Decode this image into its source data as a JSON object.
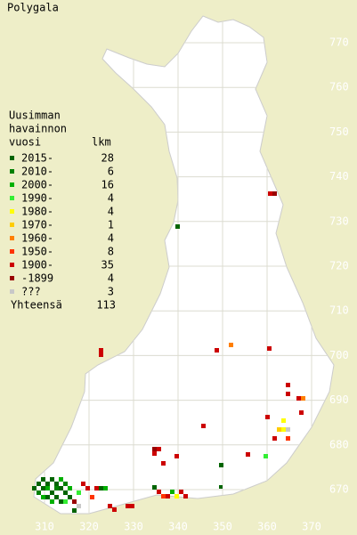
{
  "title": "Polygala",
  "legend": {
    "heading": [
      "Uusimman",
      "havainnon",
      "vuosi"
    ],
    "count_heading": "lkm",
    "rows": [
      {
        "label": "2015-",
        "count": 28,
        "color": "#006400"
      },
      {
        "label": "2010-",
        "count": 6,
        "color": "#008000"
      },
      {
        "label": "2000-",
        "count": 16,
        "color": "#00b000"
      },
      {
        "label": "1990-",
        "count": 4,
        "color": "#33ee33"
      },
      {
        "label": "1980-",
        "count": 4,
        "color": "#ffff00"
      },
      {
        "label": "1970-",
        "count": 1,
        "color": "#ffcc00"
      },
      {
        "label": "1960-",
        "count": 4,
        "color": "#ff7f00"
      },
      {
        "label": "1950-",
        "count": 8,
        "color": "#ff3300"
      },
      {
        "label": "1900-",
        "count": 35,
        "color": "#cc0000"
      },
      {
        "label": "-1899",
        "count": 4,
        "color": "#990000"
      },
      {
        "label": "???",
        "count": 3,
        "color": "#c8c8c8"
      }
    ],
    "total_label": "Yhteensä",
    "total": 113
  },
  "grid": {
    "north": [
      770,
      760,
      750,
      740,
      730,
      720,
      710,
      700,
      690,
      680,
      670
    ],
    "east": [
      310,
      320,
      330,
      340,
      350,
      360,
      370
    ]
  }
}
